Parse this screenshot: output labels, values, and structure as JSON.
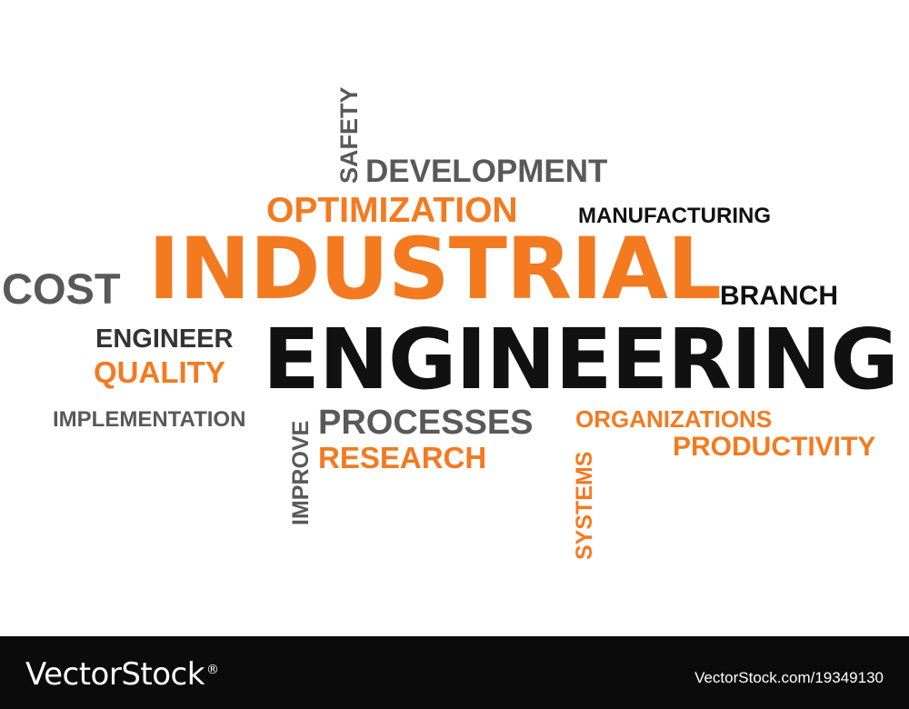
{
  "colors": {
    "orange": "#F47A20",
    "gray": "#595959",
    "black": "#111111",
    "footer_bg": "#0b0b0b"
  },
  "words": {
    "safety": "SAFETY",
    "development": "DEVELOPMENT",
    "optimization": "OPTIMIZATION",
    "manufacturing": "MANUFACTURING",
    "cost": "COST",
    "industrial": "INDUSTRIAL",
    "branch": "BRANCH",
    "engineer": "ENGINEER",
    "quality": "QUALITY",
    "engineering": "ENGINEERING",
    "implementation": "IMPLEMENTATION",
    "improve": "IMPROVE",
    "processes": "PROCESSES",
    "research": "RESEARCH",
    "systems": "SYSTEMS",
    "organizations": "ORGANIZATIONS",
    "productivity": "PRODUCTIVITY"
  },
  "footer": {
    "logo_text": "VectorStock",
    "logo_mark": "®",
    "url": "VectorStock.com/19349130"
  }
}
